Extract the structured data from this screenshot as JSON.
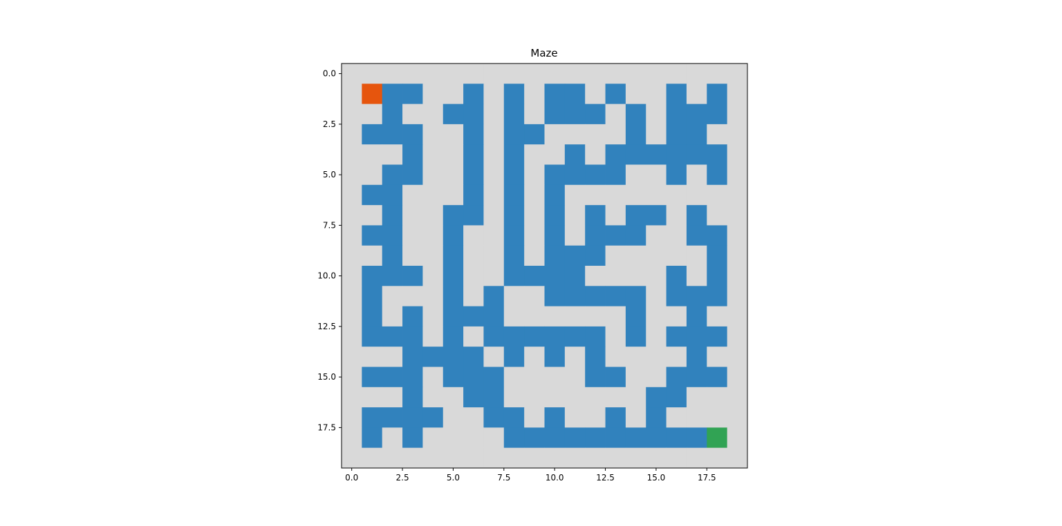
{
  "title": "Maze",
  "colors": {
    "wall": "#d9d9d9",
    "path": "#3182bd",
    "start": "#e6550d",
    "goal": "#31a354",
    "axis": "#000000",
    "background": "#ffffff"
  },
  "axes": {
    "xlim": [
      -0.5,
      19.5
    ],
    "ylim": [
      19.5,
      -0.5
    ],
    "xticks": [
      0.0,
      2.5,
      5.0,
      7.5,
      10.0,
      12.5,
      15.0,
      17.5
    ],
    "yticks": [
      0.0,
      2.5,
      5.0,
      7.5,
      10.0,
      12.5,
      15.0,
      17.5
    ],
    "xtick_labels": [
      "0.0",
      "2.5",
      "5.0",
      "7.5",
      "10.0",
      "12.5",
      "15.0",
      "17.5"
    ],
    "ytick_labels": [
      "0.0",
      "2.5",
      "5.0",
      "7.5",
      "10.0",
      "12.5",
      "15.0",
      "17.5"
    ]
  },
  "maze": {
    "size": 20,
    "legend": {
      "0": "wall",
      "1": "path",
      "2": "start",
      "3": "goal"
    },
    "rows": [
      "00000000000000000000",
      "02110010101101001010",
      "00100110101110101110",
      "01110010110000101100",
      "00010010100101111110",
      "00110010101111001010",
      "01100010101000000000",
      "00100110101010110100",
      "01100100101011100110",
      "00100100101110000010",
      "01110100111100001010",
      "01000101001111101110",
      "01010111000000100100",
      "01110101111110101110",
      "00011110101010000100",
      "01110111000011001110",
      "00010011000000011000",
      "01111001101001010000",
      "01010000111111111130",
      "00000000000000000000"
    ]
  }
}
